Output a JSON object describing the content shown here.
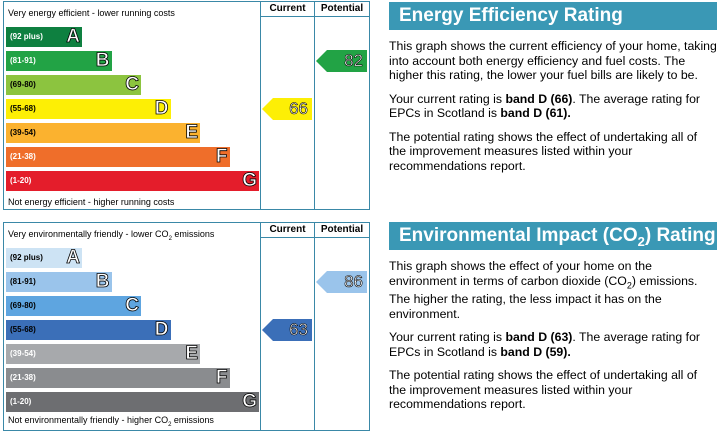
{
  "energy_efficiency": {
    "col_current": "Current",
    "col_potential": "Potential",
    "top_label": "Very energy efficient - lower running costs",
    "bottom_label": "Not energy efficient - higher running costs",
    "bands": [
      {
        "range": "(92 plus)",
        "letter": "A",
        "color": "#0e8040"
      },
      {
        "range": "(81-91)",
        "letter": "B",
        "color": "#22a345"
      },
      {
        "range": "(69-80)",
        "letter": "C",
        "color": "#8cc43f"
      },
      {
        "range": "(55-68)",
        "letter": "D",
        "color": "#fdef05"
      },
      {
        "range": "(39-54)",
        "letter": "E",
        "color": "#fbb22f"
      },
      {
        "range": "(21-38)",
        "letter": "F",
        "color": "#ef6e2a"
      },
      {
        "range": "(1-20)",
        "letter": "G",
        "color": "#e41d2b"
      }
    ],
    "current": {
      "value": "66",
      "band": "D",
      "color": "#fdef05"
    },
    "potential": {
      "value": "82",
      "band": "B",
      "color": "#22a345"
    }
  },
  "environmental_impact": {
    "col_current": "Current",
    "col_potential": "Potential",
    "top_label_pre": "Very environmentally friendly - lower CO",
    "top_label_sub": "2",
    "top_label_post": " emissions",
    "bottom_label_pre": "Not environmentally friendly - higher CO",
    "bottom_label_sub": "2",
    "bottom_label_post": " emissions",
    "bands": [
      {
        "range": "(92 plus)",
        "letter": "A",
        "color": "#cde3f4"
      },
      {
        "range": "(81-91)",
        "letter": "B",
        "color": "#9ac4eb"
      },
      {
        "range": "(69-80)",
        "letter": "C",
        "color": "#5ea5e0"
      },
      {
        "range": "(55-68)",
        "letter": "D",
        "color": "#3b6fb8"
      },
      {
        "range": "(39-54)",
        "letter": "E",
        "color": "#a7a9ac"
      },
      {
        "range": "(21-38)",
        "letter": "F",
        "color": "#8a8c8f"
      },
      {
        "range": "(1-20)",
        "letter": "G",
        "color": "#6d6e71"
      }
    ],
    "current": {
      "value": "63",
      "band": "D",
      "color": "#3b6fb8"
    },
    "potential": {
      "value": "86",
      "band": "B",
      "color": "#9ac4eb"
    }
  },
  "ee_panel": {
    "title": "Energy Efficiency Rating",
    "p1": "This graph shows the current efficiency of your home, taking into account both energy efficiency and fuel costs. The higher this rating, the lower your fuel bills are likely to be.",
    "p2_a": "Your current rating is ",
    "p2_b": "band D (66)",
    "p2_c": ". The average rating for EPCs in Scotland is ",
    "p2_d": "band D (61).",
    "p3": "The potential rating shows the effect of undertaking all of the improvement measures listed within your recommendations report."
  },
  "ei_panel": {
    "title_pre": "Environmental Impact (CO",
    "title_sub": "2",
    "title_post": ") Rating",
    "p1_pre": "This graph shows the effect of your home on the environment in terms of carbon dioxide (CO",
    "p1_sub": "2",
    "p1_post": ") emissions. The higher the rating, the less impact it has on the environment.",
    "p2_a": "Your current rating is ",
    "p2_b": "band D (63)",
    "p2_c": ". The average rating for EPCs in Scotland is ",
    "p2_d": "band D (59).",
    "p3": "The potential rating shows the effect of undertaking all of the improvement measures listed within your recommendations report."
  }
}
